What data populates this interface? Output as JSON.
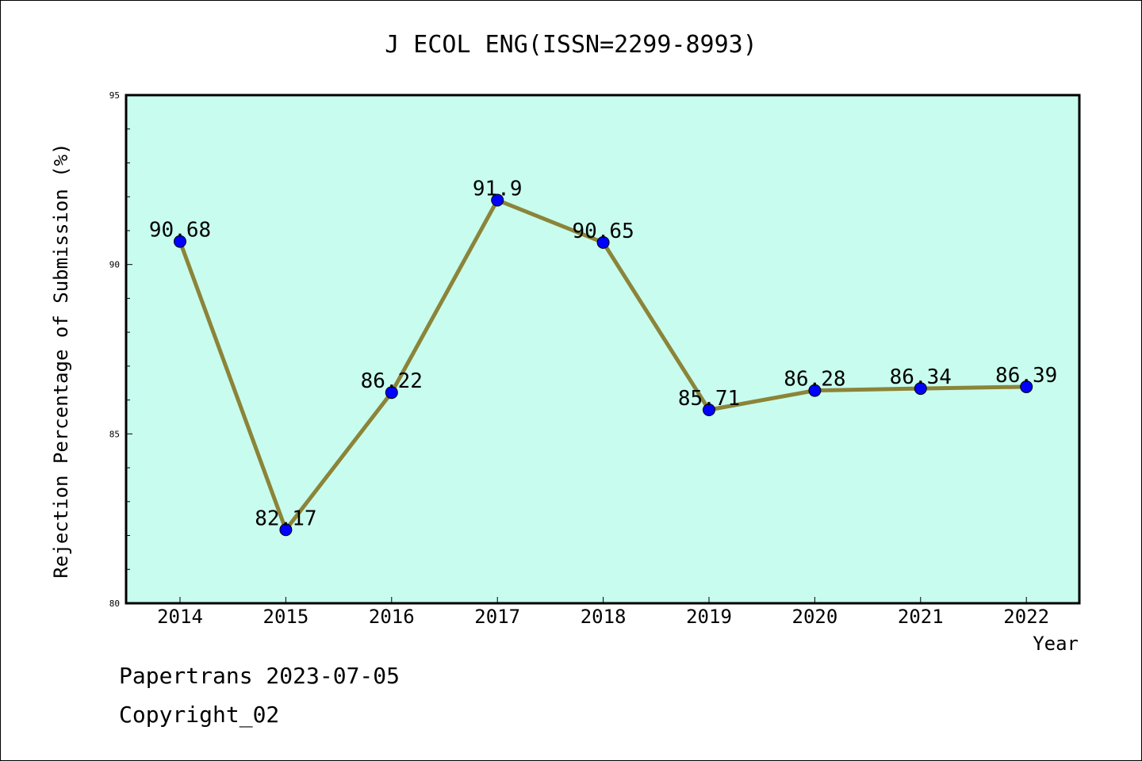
{
  "chart_data": {
    "type": "line",
    "title": "J ECOL ENG(ISSN=2299-8993)",
    "xlabel": "Year",
    "ylabel": "Rejection Percentage of Submission (%)",
    "categories": [
      "2014",
      "2015",
      "2016",
      "2017",
      "2018",
      "2019",
      "2020",
      "2021",
      "2022"
    ],
    "series": [
      {
        "values": [
          90.68,
          82.17,
          86.22,
          91.9,
          90.65,
          85.71,
          86.28,
          86.34,
          86.39
        ],
        "labels": [
          "90.68",
          "82.17",
          "86.22",
          "91.9",
          "90.65",
          "85.71",
          "86.28",
          "86.34",
          "86.39"
        ]
      }
    ],
    "ylim": [
      80,
      95
    ],
    "yticks": [
      "80",
      "85",
      "90",
      "95"
    ],
    "grid": false,
    "colors": {
      "plot_background": "#c8fcee",
      "line": "#8b8439",
      "marker": "#0000ff"
    }
  },
  "footer": {
    "line1": "Papertrans 2023-07-05",
    "line2": "Copyright_02"
  }
}
